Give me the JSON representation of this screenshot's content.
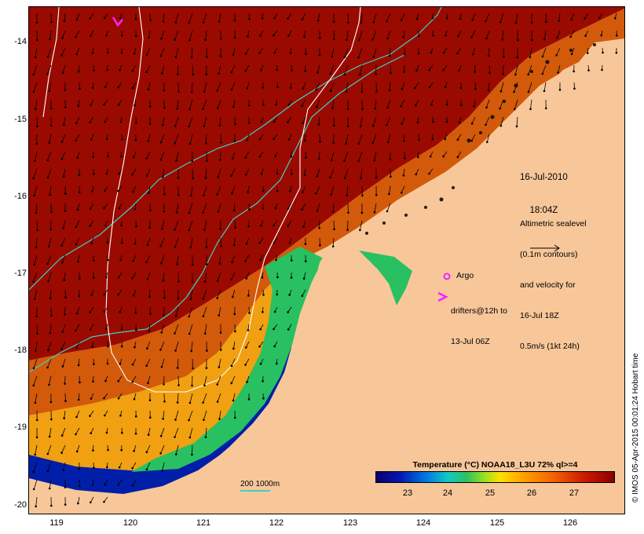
{
  "map": {
    "lat_labels": [
      "-14",
      "-15",
      "-16",
      "-17",
      "-18",
      "-19",
      "-20"
    ],
    "lon_labels": [
      "119",
      "120",
      "121",
      "122",
      "123",
      "124",
      "125",
      "126"
    ],
    "date_line1": "16-Jul-2010",
    "date_line2": "18:04Z",
    "altimetry": [
      "Altimetric sealevel",
      "(0.1m contours)",
      "and velocity for",
      "16-Jul 18Z",
      "0.5m/s (1kt 24h)"
    ],
    "argo_label": "Argo",
    "drifters_line1": "drifters@12h to",
    "drifters_line2": "13-Jul 06Z",
    "bathymetry_label": "200  1000m",
    "colorbar_title": "Temperature (°C) NOAA18_L3U 72% ql>=4",
    "colorbar_ticks": [
      "23",
      "24",
      "25",
      "26",
      "27"
    ],
    "credit": "© IMOS 05-Apr-2015 00:01:24 Hobart time",
    "colors": {
      "land": "#f7c79a",
      "sst_hot": "#9a0a00",
      "sst_warm": "#d25a0a",
      "sst_mid": "#f0a010",
      "sst_cool": "#28c060",
      "sst_cold": "#001ea8",
      "contour": "#ffffff",
      "isobath": "#3fd0c8",
      "marker": "#ff20ff"
    }
  }
}
